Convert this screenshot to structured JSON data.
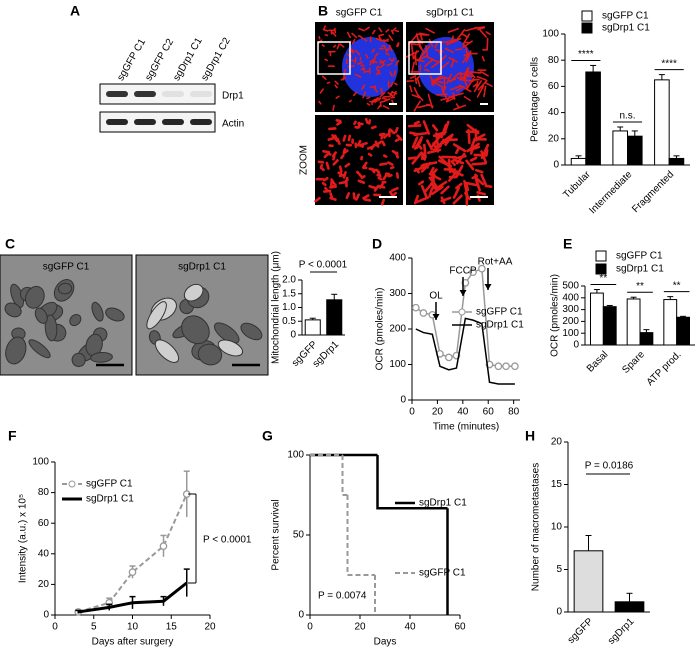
{
  "panel_labels": [
    "A",
    "B",
    "C",
    "D",
    "E",
    "F",
    "G",
    "H"
  ],
  "blot": {
    "lanes": [
      "sgGFP C1",
      "sgGFP C2",
      "sgDrp1 C1",
      "sgDrp1 C2"
    ],
    "proteins": [
      "Drp1",
      "Actin"
    ]
  },
  "micrographs_b": {
    "columns": [
      "sgGFP C1",
      "sgDrp1 C1"
    ],
    "row_label": "ZOOM"
  },
  "micrographs_c": {
    "columns": [
      "sgGFP C1",
      "sgDrp1 C1"
    ]
  },
  "chart_data": [
    {
      "type": "bar",
      "categories": [
        "Tubular",
        "Intermediate",
        "Fragmented"
      ],
      "ylabel": "Percentage of cells",
      "ylim": [
        0,
        100
      ],
      "yticks": [
        0,
        20,
        40,
        60,
        80,
        100
      ],
      "series": [
        {
          "name": "sgGFP C1",
          "color": "#ffffff",
          "values": [
            5,
            26,
            65
          ],
          "errors": [
            2,
            3,
            4
          ]
        },
        {
          "name": "sgDrp1 C1",
          "color": "#000000",
          "values": [
            71,
            22,
            5
          ],
          "errors": [
            5,
            4,
            2
          ]
        }
      ],
      "annotations": [
        "****",
        "n.s.",
        "****"
      ]
    },
    {
      "type": "bar",
      "categories": [
        "sgGFP",
        "sgDrp1"
      ],
      "ylabel": "Mitochondrial length (μm)",
      "values": [
        0.55,
        1.28
      ],
      "errors": [
        0.06,
        0.2
      ],
      "colors": [
        "#ffffff",
        "#000000"
      ],
      "ylim": [
        0,
        2
      ],
      "yticks": [
        0,
        0.5,
        {
          "value": 1,
          "label": "1.0"
        },
        1.5,
        {
          "value": 2,
          "label": "2.0"
        }
      ],
      "annotations": [
        "P < 0.0001"
      ]
    },
    {
      "type": "line",
      "xlabel": "Time (minutes)",
      "ylabel": "OCR (pmoles/min)",
      "xlim": [
        0,
        85
      ],
      "xticks": [
        0,
        20,
        40,
        60,
        80
      ],
      "ylim": [
        0,
        400
      ],
      "yticks": [
        0,
        100,
        200,
        300,
        400
      ],
      "series": [
        {
          "name": "sgGFP C1",
          "color": "#999999",
          "marker": "open-circle",
          "x": [
            3,
            9,
            16,
            22,
            29,
            35,
            42,
            48,
            55,
            61,
            68,
            74,
            81
          ],
          "values": [
            260,
            245,
            240,
            130,
            120,
            125,
            330,
            360,
            370,
            100,
            95,
            95,
            95
          ]
        },
        {
          "name": "sgDrp1 C1",
          "color": "#000000",
          "marker": "none",
          "x": [
            3,
            9,
            16,
            22,
            29,
            35,
            42,
            48,
            55,
            61,
            68,
            74,
            81
          ],
          "values": [
            200,
            190,
            185,
            95,
            85,
            90,
            230,
            225,
            215,
            50,
            45,
            45,
            45
          ]
        }
      ],
      "annotations": [
        "OL",
        "FCCP",
        "Rot+AA"
      ]
    },
    {
      "type": "bar",
      "categories": [
        "Basal",
        "Spare",
        "ATP prod."
      ],
      "ylabel": "OCR (pmoles/min)",
      "ylim": [
        0,
        500
      ],
      "yticks": [
        0,
        100,
        200,
        300,
        400,
        500
      ],
      "series": [
        {
          "name": "sgGFP C1",
          "color": "#ffffff",
          "values": [
            440,
            390,
            385
          ],
          "errors": [
            30,
            15,
            25
          ]
        },
        {
          "name": "sgDrp1 C1",
          "color": "#000000",
          "values": [
            325,
            105,
            235
          ],
          "errors": [
            10,
            25,
            8
          ]
        }
      ],
      "annotations": [
        "**",
        "**",
        "**"
      ]
    },
    {
      "type": "line",
      "xlabel": "Days after surgery",
      "ylabel": "Intensity (a.u.) x 10⁵",
      "xlim": [
        0,
        20
      ],
      "xticks": [
        0,
        5,
        10,
        15,
        20
      ],
      "ylim": [
        0,
        100
      ],
      "yticks": [
        0,
        20,
        40,
        60,
        80,
        100
      ],
      "series": [
        {
          "name": "sgGFP C1",
          "color": "#999999",
          "marker": "open-circle",
          "dashed": true,
          "line_width": 2,
          "x": [
            3,
            7,
            10,
            14,
            17
          ],
          "values": [
            2,
            8,
            28,
            45,
            79
          ],
          "errors": [
            1,
            3,
            4,
            7,
            15
          ]
        },
        {
          "name": "sgDrp1 C1",
          "color": "#000000",
          "marker": "none",
          "line_width": 3,
          "x": [
            3,
            7,
            10,
            14,
            17
          ],
          "values": [
            2,
            5,
            8,
            9,
            21
          ],
          "errors": [
            1,
            2,
            4,
            3,
            9
          ]
        }
      ],
      "annotations": [
        "P < 0.0001"
      ]
    },
    {
      "type": "step",
      "xlabel": "Days",
      "ylabel": "Percent survival",
      "xlim": [
        0,
        60
      ],
      "xticks": [
        0,
        20,
        40,
        60
      ],
      "ylim": [
        0,
        100
      ],
      "yticks": [
        0,
        50,
        100
      ],
      "series": [
        {
          "name": "sgDrp1 C1",
          "color": "#000000",
          "line_width": 2.5,
          "x": [
            0,
            27,
            55
          ],
          "values": [
            100,
            66.7,
            0
          ]
        },
        {
          "name": "sgGFP C1",
          "color": "#999999",
          "dashed": true,
          "line_width": 2,
          "x": [
            0,
            13,
            15,
            26
          ],
          "values": [
            100,
            75,
            25,
            0
          ]
        }
      ],
      "annotations": [
        "P = 0.0074"
      ]
    },
    {
      "type": "bar",
      "categories": [
        "sgGFP",
        "sgDrp1"
      ],
      "ylabel": "Number of macrometastases",
      "values": [
        7.2,
        1.2
      ],
      "errors": [
        1.8,
        1.0
      ],
      "colors": [
        "#dddddd",
        "#000000"
      ],
      "ylim": [
        0,
        20
      ],
      "yticks": [
        0,
        5,
        10,
        15,
        20
      ],
      "annotations": [
        "P = 0.0186"
      ]
    }
  ]
}
